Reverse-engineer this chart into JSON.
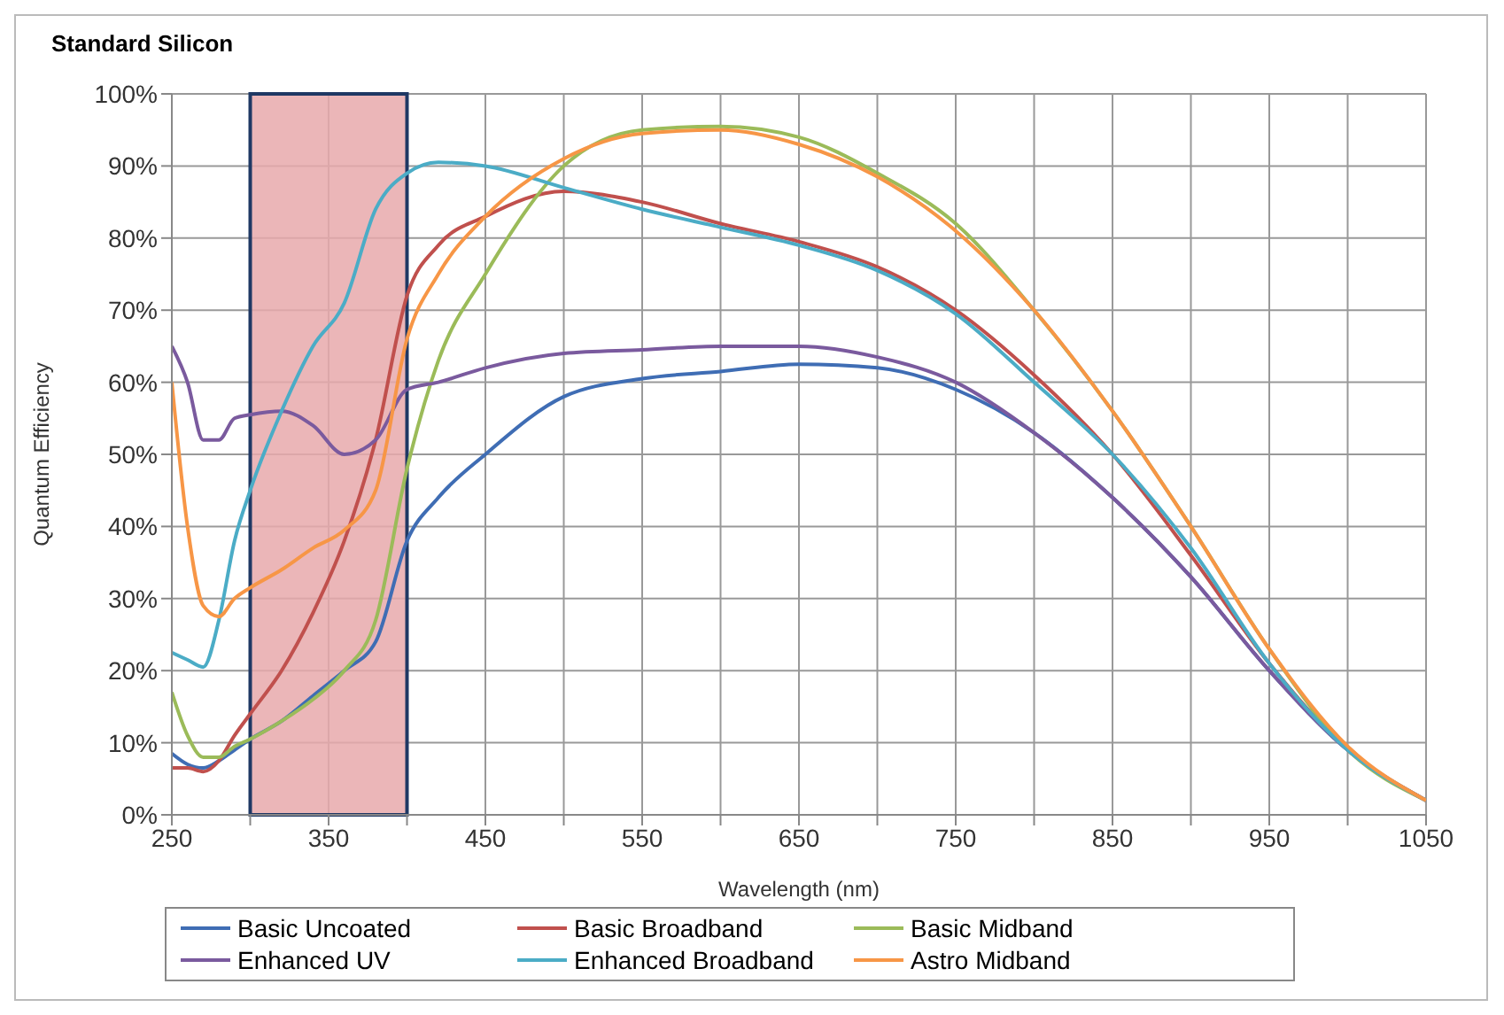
{
  "chart_data": {
    "type": "line",
    "title": "Standard Silicon",
    "xlabel": "Wavelength (nm)",
    "ylabel": "Quantum Efficiency",
    "x": [
      250,
      260,
      270,
      280,
      290,
      300,
      320,
      340,
      360,
      380,
      400,
      420,
      450,
      500,
      550,
      600,
      650,
      700,
      750,
      800,
      850,
      900,
      950,
      1000,
      1050
    ],
    "series": [
      {
        "name": "Basic Uncoated",
        "color": "#3f6db4",
        "values": [
          8.5,
          7,
          6.5,
          7.5,
          9,
          10.5,
          13,
          16.5,
          20,
          24,
          38,
          44,
          50,
          58,
          60.5,
          61.5,
          62.5,
          62,
          59,
          53,
          44,
          33,
          20,
          9,
          2
        ]
      },
      {
        "name": "Basic Broadband",
        "color": "#c0504d",
        "values": [
          6.5,
          6.5,
          6,
          7.5,
          11,
          14,
          20,
          28,
          38,
          52,
          72,
          79,
          83,
          86.5,
          85,
          82,
          79.5,
          76,
          70,
          61,
          50,
          36,
          21,
          9,
          2
        ]
      },
      {
        "name": "Basic Midband",
        "color": "#9bbb59",
        "values": [
          17,
          11,
          8,
          8,
          9.5,
          10.5,
          13,
          16,
          20,
          27,
          48,
          63,
          75,
          90,
          95,
          95.5,
          94,
          89,
          82,
          70,
          56,
          40,
          23,
          9,
          2
        ]
      },
      {
        "name": "Enhanced UV",
        "color": "#7a5a9e",
        "values": [
          65,
          60,
          52,
          52,
          55,
          55.5,
          56,
          54,
          50,
          52,
          59,
          60,
          62,
          64,
          64.5,
          65,
          65,
          63.5,
          60,
          53,
          44,
          33,
          20,
          9,
          2
        ]
      },
      {
        "name": "Enhanced Broadband",
        "color": "#4bacc6",
        "values": [
          22.5,
          21.5,
          20.5,
          27,
          38,
          45,
          56,
          65,
          71,
          84,
          89,
          90.5,
          90,
          87,
          84,
          81.5,
          79,
          75.5,
          69.5,
          60,
          50,
          37,
          21,
          9,
          2
        ]
      },
      {
        "name": "Astro Midband",
        "color": "#f79646",
        "values": [
          60,
          40,
          29,
          27.5,
          30,
          31.5,
          34,
          37,
          39.5,
          45,
          66,
          75,
          83,
          91,
          94.5,
          95,
          93,
          88.5,
          81,
          70,
          56,
          40,
          23,
          9.5,
          2
        ]
      }
    ],
    "xlim": [
      250,
      1050
    ],
    "xticks": [
      250,
      {
        "value": 300,
        "label": null
      },
      350,
      {
        "value": 400,
        "label": null
      },
      450,
      {
        "value": 500,
        "label": null
      },
      550,
      {
        "value": 600,
        "label": null
      },
      650,
      {
        "value": 700,
        "label": null
      },
      750,
      {
        "value": 800,
        "label": null
      },
      850,
      {
        "value": 900,
        "label": null
      },
      950,
      {
        "value": 1000,
        "label": null
      },
      1050
    ],
    "ylim": [
      0,
      100
    ],
    "yticks": [
      {
        "value": 0,
        "label": "0%"
      },
      {
        "value": 10,
        "label": "10%"
      },
      {
        "value": 20,
        "label": "20%"
      },
      {
        "value": 30,
        "label": "30%"
      },
      {
        "value": 40,
        "label": "40%"
      },
      {
        "value": 50,
        "label": "50%"
      },
      {
        "value": 60,
        "label": "60%"
      },
      {
        "value": 70,
        "label": "70%"
      },
      {
        "value": 80,
        "label": "80%"
      },
      {
        "value": 90,
        "label": "90%"
      },
      {
        "value": 100,
        "label": "100%"
      }
    ],
    "bands": [
      {
        "axis": "x",
        "from": 300,
        "to": 400,
        "color": "#e8a9ab"
      }
    ],
    "grid": true,
    "legend": "bottom",
    "marker": "none",
    "line_style": "solid"
  }
}
